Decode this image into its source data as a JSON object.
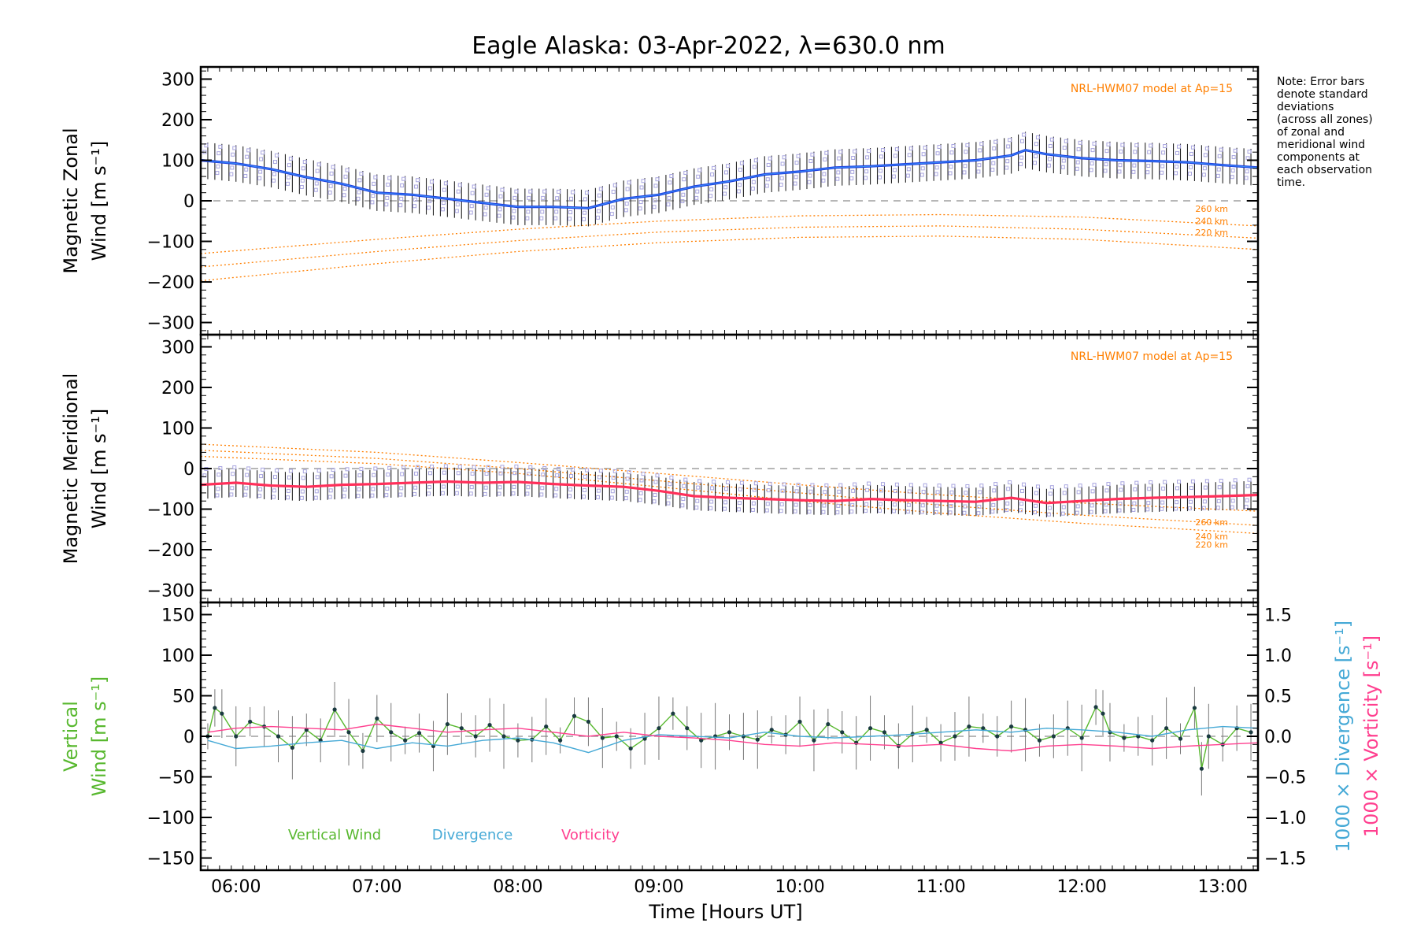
{
  "title": "Eagle Alaska: 03-Apr-2022, λ=630.0 nm",
  "note": [
    "Note: Error bars",
    "denote standard",
    "deviations",
    "(across all zones)",
    "of zonal and",
    "meridional wind",
    "components at",
    "each observation",
    "time."
  ],
  "x_axis": {
    "label": "Time [Hours UT]",
    "range_hours": [
      5.75,
      13.25
    ],
    "tick_hours": [
      6,
      7,
      8,
      9,
      10,
      11,
      12,
      13
    ],
    "tick_labels": [
      "06:00",
      "07:00",
      "08:00",
      "09:00",
      "10:00",
      "11:00",
      "12:00",
      "13:00"
    ]
  },
  "colors": {
    "zonal_wind": "#1f3fe0",
    "zonal_highlight": "#3fa8ff",
    "meridional_wind": "#ff2f5a",
    "model": "#ff7f00",
    "zone_samples": "#a9a6e0",
    "vertical_wind": "#58b82f",
    "divergence": "#45a9d6",
    "vorticity": "#ff3f8f",
    "zero_line": "#8c8c8c"
  },
  "chart_data": [
    {
      "type": "line",
      "ylabel_lines": [
        "Magnetic Zonal",
        "Wind [m s⁻¹]"
      ],
      "ylim": [
        -330,
        330
      ],
      "y_ticks": [
        -300,
        -200,
        -100,
        0,
        100,
        200,
        300
      ],
      "y_tick_labels": [
        "−300",
        "−200",
        "−100",
        "0",
        "100",
        "200",
        "300"
      ],
      "model_label": "NRL-HWM07 model at Ap=15",
      "series": [
        {
          "name": "Zonal wind",
          "x": [
            5.75,
            6.0,
            6.25,
            6.5,
            6.75,
            7.0,
            7.25,
            7.5,
            7.75,
            8.0,
            8.25,
            8.5,
            8.75,
            9.0,
            9.25,
            9.5,
            9.75,
            10.0,
            10.25,
            10.5,
            10.75,
            11.0,
            11.25,
            11.5,
            11.6,
            11.75,
            12.0,
            12.25,
            12.5,
            12.75,
            13.0,
            13.25
          ],
          "y": [
            100,
            92,
            78,
            58,
            42,
            20,
            15,
            5,
            -5,
            -15,
            -15,
            -18,
            5,
            15,
            35,
            48,
            65,
            72,
            82,
            85,
            90,
            95,
            100,
            112,
            125,
            115,
            105,
            100,
            98,
            95,
            88,
            82
          ],
          "error": 45
        }
      ],
      "model_curves": [
        {
          "name": "260 km",
          "x": [
            5.75,
            7.0,
            8.0,
            9.0,
            10.0,
            11.0,
            12.0,
            13.25
          ],
          "y": [
            -130,
            -95,
            -70,
            -50,
            -37,
            -34,
            -40,
            -62
          ]
        },
        {
          "name": "240 km",
          "x": [
            5.75,
            7.0,
            8.0,
            9.0,
            10.0,
            11.0,
            12.0,
            13.25
          ],
          "y": [
            -163,
            -125,
            -98,
            -77,
            -65,
            -62,
            -70,
            -92
          ]
        },
        {
          "name": "220 km",
          "x": [
            5.75,
            7.0,
            8.0,
            9.0,
            10.0,
            11.0,
            12.0,
            13.25
          ],
          "y": [
            -197,
            -155,
            -125,
            -103,
            -90,
            -87,
            -95,
            -120
          ]
        }
      ]
    },
    {
      "type": "line",
      "ylabel_lines": [
        "Magnetic Meridional",
        "Wind [m s⁻¹]"
      ],
      "ylim": [
        -330,
        330
      ],
      "y_ticks": [
        -300,
        -200,
        -100,
        0,
        100,
        200,
        300
      ],
      "y_tick_labels": [
        "−300",
        "−200",
        "−100",
        "0",
        "100",
        "200",
        "300"
      ],
      "model_label": "NRL-HWM07 model at Ap=15",
      "series": [
        {
          "name": "Meridional wind",
          "x": [
            5.75,
            6.0,
            6.25,
            6.5,
            6.75,
            7.0,
            7.25,
            7.5,
            7.75,
            8.0,
            8.25,
            8.5,
            8.75,
            9.0,
            9.25,
            9.5,
            9.75,
            10.0,
            10.25,
            10.5,
            10.75,
            11.0,
            11.25,
            11.5,
            11.75,
            12.0,
            12.25,
            12.5,
            12.75,
            13.0,
            13.25
          ],
          "y": [
            -40,
            -35,
            -42,
            -45,
            -40,
            -38,
            -35,
            -32,
            -35,
            -33,
            -38,
            -42,
            -45,
            -55,
            -68,
            -72,
            -75,
            -78,
            -80,
            -75,
            -78,
            -80,
            -82,
            -72,
            -85,
            -80,
            -75,
            -72,
            -70,
            -68,
            -65
          ],
          "error": 35
        }
      ],
      "model_curves": [
        {
          "name": "260 km",
          "x": [
            5.75,
            7.0,
            8.0,
            9.0,
            10.0,
            11.0,
            12.0,
            13.25
          ],
          "y": [
            60,
            40,
            15,
            -12,
            -40,
            -65,
            -85,
            -105
          ]
        },
        {
          "name": "240 km",
          "x": [
            5.75,
            7.0,
            8.0,
            9.0,
            10.0,
            11.0,
            12.0,
            13.25
          ],
          "y": [
            45,
            25,
            0,
            -30,
            -60,
            -90,
            -115,
            -140
          ]
        },
        {
          "name": "220 km",
          "x": [
            5.75,
            7.0,
            8.0,
            9.0,
            10.0,
            11.0,
            12.0,
            13.25
          ],
          "y": [
            30,
            12,
            -12,
            -45,
            -80,
            -110,
            -135,
            -160
          ]
        }
      ]
    },
    {
      "type": "line",
      "ylabel_lines": [
        "Vertical",
        "Wind [m s⁻¹]"
      ],
      "ylim": [
        -165,
        165
      ],
      "y_ticks": [
        -150,
        -100,
        -50,
        0,
        50,
        100,
        150
      ],
      "y_tick_labels": [
        "−150",
        "−100",
        "−50",
        "0",
        "50",
        "100",
        "150"
      ],
      "y2lim": [
        -1.65,
        1.65
      ],
      "y2_ticks": [
        -1.5,
        -1.0,
        -0.5,
        0.0,
        0.5,
        1.0,
        1.5
      ],
      "y2_tick_labels": [
        "−1.5",
        "−1.0",
        "−0.5",
        "0.0",
        "0.5",
        "1.0",
        "1.5"
      ],
      "y2label_divergence": "1000 × Divergence [s⁻¹]",
      "y2label_vorticity": "1000 × Vorticity [s⁻¹]",
      "legend": [
        "Vertical Wind",
        "Divergence",
        "Vorticity"
      ],
      "series": [
        {
          "name": "Vertical Wind",
          "x": [
            5.8,
            5.85,
            5.9,
            6.0,
            6.1,
            6.2,
            6.3,
            6.4,
            6.5,
            6.6,
            6.7,
            6.8,
            6.9,
            7.0,
            7.1,
            7.2,
            7.3,
            7.4,
            7.5,
            7.6,
            7.7,
            7.8,
            7.9,
            8.0,
            8.1,
            8.2,
            8.3,
            8.4,
            8.5,
            8.6,
            8.7,
            8.8,
            8.9,
            9.0,
            9.1,
            9.2,
            9.3,
            9.4,
            9.5,
            9.6,
            9.7,
            9.8,
            9.9,
            10.0,
            10.1,
            10.2,
            10.3,
            10.4,
            10.5,
            10.6,
            10.7,
            10.8,
            10.9,
            11.0,
            11.1,
            11.2,
            11.3,
            11.4,
            11.5,
            11.6,
            11.7,
            11.8,
            11.9,
            12.0,
            12.1,
            12.15,
            12.2,
            12.3,
            12.4,
            12.5,
            12.6,
            12.7,
            12.8,
            12.85,
            12.9,
            13.0,
            13.1,
            13.2
          ],
          "y": [
            0,
            35,
            28,
            0,
            18,
            12,
            0,
            -14,
            8,
            -5,
            33,
            5,
            -18,
            22,
            5,
            -5,
            4,
            -12,
            15,
            10,
            0,
            14,
            0,
            -5,
            -4,
            12,
            -5,
            25,
            18,
            -2,
            0,
            -15,
            -3,
            10,
            28,
            10,
            -5,
            0,
            5,
            0,
            -4,
            8,
            2,
            18,
            -5,
            15,
            5,
            -8,
            10,
            5,
            -12,
            3,
            8,
            -8,
            0,
            12,
            10,
            0,
            12,
            8,
            -5,
            0,
            10,
            -2,
            36,
            28,
            5,
            -2,
            0,
            -5,
            10,
            -3,
            35,
            -40,
            0,
            -10,
            10,
            5
          ],
          "error_hi": 45
        }
      ],
      "divergence_series": {
        "name": "Divergence",
        "x": [
          5.8,
          6.0,
          6.25,
          6.5,
          6.75,
          7.0,
          7.25,
          7.5,
          7.75,
          8.0,
          8.25,
          8.5,
          8.75,
          9.0,
          9.25,
          9.5,
          9.75,
          10.0,
          10.25,
          10.5,
          10.75,
          11.0,
          11.25,
          11.5,
          11.75,
          12.0,
          12.25,
          12.5,
          12.75,
          13.0,
          13.25
        ],
        "y": [
          -0.05,
          -0.15,
          -0.12,
          -0.08,
          -0.05,
          -0.15,
          -0.08,
          -0.12,
          -0.05,
          -0.02,
          -0.08,
          -0.2,
          -0.05,
          0.02,
          0.0,
          -0.02,
          0.05,
          0.0,
          -0.02,
          0.0,
          0.02,
          0.05,
          0.08,
          0.05,
          0.1,
          0.08,
          0.05,
          0.0,
          0.08,
          0.12,
          0.1
        ]
      },
      "vorticity_series": {
        "name": "Vorticity",
        "x": [
          5.8,
          6.0,
          6.25,
          6.5,
          6.75,
          7.0,
          7.25,
          7.5,
          7.75,
          8.0,
          8.25,
          8.5,
          8.75,
          9.0,
          9.25,
          9.5,
          9.75,
          10.0,
          10.25,
          10.5,
          10.75,
          11.0,
          11.25,
          11.5,
          11.75,
          12.0,
          12.25,
          12.5,
          12.75,
          13.0,
          13.25
        ],
        "y": [
          0.05,
          0.1,
          0.12,
          0.1,
          0.08,
          0.15,
          0.1,
          0.05,
          0.08,
          0.1,
          0.05,
          0.0,
          0.05,
          0.0,
          -0.02,
          -0.05,
          -0.1,
          -0.12,
          -0.08,
          -0.1,
          -0.12,
          -0.1,
          -0.15,
          -0.18,
          -0.12,
          -0.1,
          -0.12,
          -0.15,
          -0.12,
          -0.1,
          -0.08
        ]
      }
    }
  ]
}
